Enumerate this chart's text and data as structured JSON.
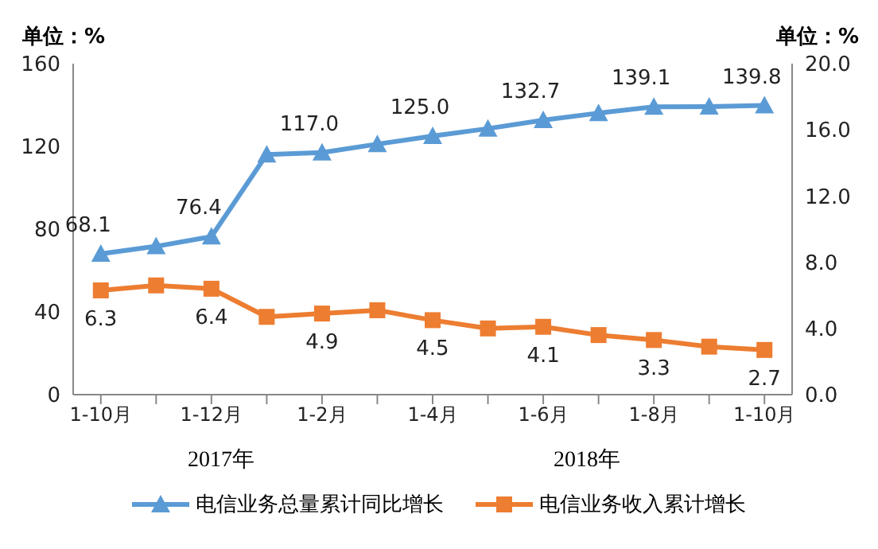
{
  "chart_data": {
    "type": "line",
    "ylabel": "单位：%",
    "y2label": "单位：%",
    "categories": [
      "1-10月",
      null,
      "1-12月",
      null,
      "1-2月",
      null,
      "1-4月",
      null,
      "1-6月",
      null,
      "1-8月",
      null,
      "1-10月"
    ],
    "series": [
      {
        "name": "电信业务总量累计同比增长",
        "color": "#5b9bd5",
        "marker": "triangle",
        "values": [
          68.1,
          71.7,
          76.4,
          116.1,
          117.0,
          121.1,
          125.0,
          128.6,
          132.7,
          136.1,
          139.1,
          139.2,
          139.8
        ],
        "value_labels": [
          "68.1",
          null,
          "76.4",
          null,
          "117.0",
          null,
          "125.0",
          null,
          "132.7",
          null,
          "139.1",
          null,
          "139.8"
        ]
      },
      {
        "name": "电信业务收入累计增长",
        "color": "#ed7d31",
        "marker": "square",
        "axis": "y2",
        "values": [
          6.3,
          6.6,
          6.4,
          4.7,
          4.9,
          5.1,
          4.5,
          4.0,
          4.1,
          3.6,
          3.3,
          2.9,
          2.7
        ],
        "value_labels": [
          "6.3",
          null,
          "6.4",
          null,
          "4.9",
          null,
          "4.5",
          null,
          "4.1",
          null,
          "3.3",
          null,
          "2.7"
        ]
      }
    ],
    "ylim": [
      0,
      160
    ],
    "yticks": [
      0,
      40,
      80,
      120,
      160
    ],
    "y2lim": [
      0,
      20
    ],
    "y2ticks": [
      {
        "value": 0,
        "label": "0.0"
      },
      {
        "value": 4,
        "label": "4.0"
      },
      {
        "value": 8,
        "label": "8.0"
      },
      {
        "value": 12,
        "label": "12.0"
      },
      {
        "value": 16,
        "label": "16.0"
      },
      {
        "value": 20,
        "label": "20.0"
      }
    ],
    "annotations": [
      "2017年",
      "2018年"
    ],
    "legend": "bottom",
    "grid": false
  }
}
